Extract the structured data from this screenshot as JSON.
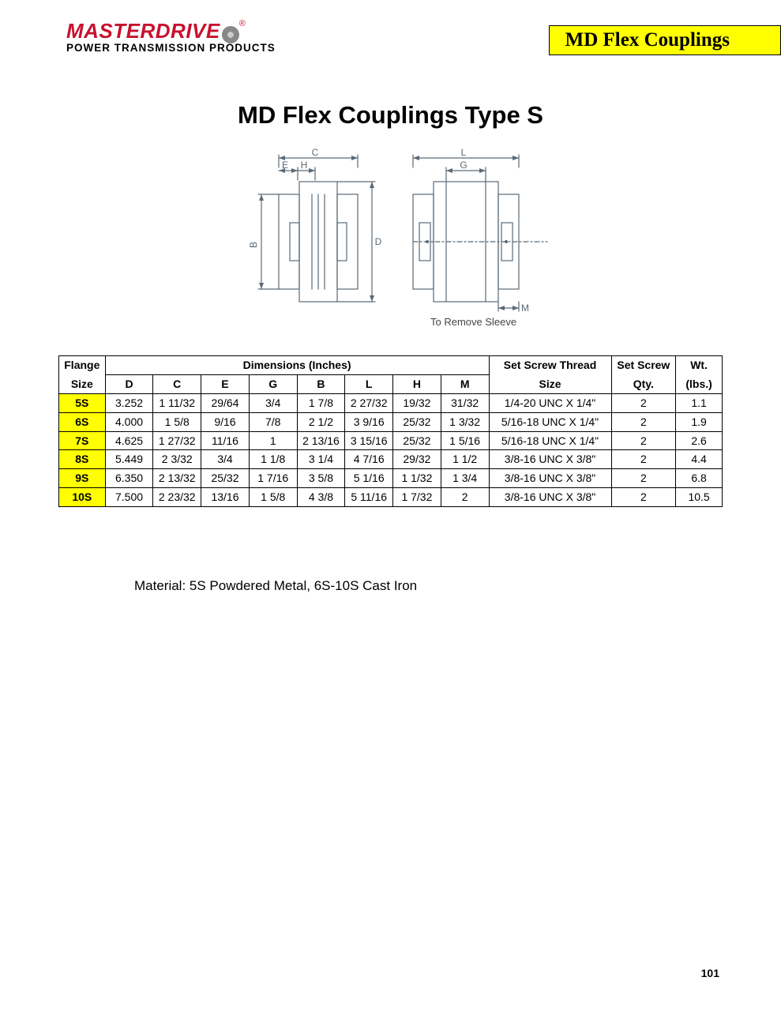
{
  "logo": {
    "brand": "MASTERDRIVE",
    "reg": "®",
    "tagline": "POWER TRANSMISSION PRODUCTS"
  },
  "banner": "MD Flex Couplings",
  "title": "MD Flex Couplings Type S",
  "diagram": {
    "labels": {
      "C": "C",
      "E": "E",
      "H": "H",
      "B": "B",
      "D": "D",
      "L": "L",
      "G": "G",
      "M": "M"
    },
    "note": "To Remove Sleeve",
    "stroke": "#5a6a78",
    "stroke_width": 1.2
  },
  "table": {
    "headers": {
      "flange": {
        "l1": "Flange",
        "l2": "Size"
      },
      "dimensions_group": "Dimensions (Inches)",
      "dims": [
        "D",
        "C",
        "E",
        "G",
        "B",
        "L",
        "H",
        "M"
      ],
      "thread": {
        "l1": "Set Screw Thread",
        "l2": "Size"
      },
      "qty": {
        "l1": "Set Screw",
        "l2": "Qty."
      },
      "wt": {
        "l1": "Wt.",
        "l2": "(lbs.)"
      }
    },
    "rows": [
      {
        "flange": "5S",
        "D": "3.252",
        "C": "1 11/32",
        "E": "29/64",
        "G": "3/4",
        "B": "1 7/8",
        "L": "2 27/32",
        "H": "19/32",
        "M": "31/32",
        "thread": "1/4-20 UNC X 1/4\"",
        "qty": "2",
        "wt": "1.1"
      },
      {
        "flange": "6S",
        "D": "4.000",
        "C": "1 5/8",
        "E": "9/16",
        "G": "7/8",
        "B": "2 1/2",
        "L": "3 9/16",
        "H": "25/32",
        "M": "1 3/32",
        "thread": "5/16-18 UNC X 1/4\"",
        "qty": "2",
        "wt": "1.9"
      },
      {
        "flange": "7S",
        "D": "4.625",
        "C": "1 27/32",
        "E": "11/16",
        "G": "1",
        "B": "2 13/16",
        "L": "3 15/16",
        "H": "25/32",
        "M": "1 5/16",
        "thread": "5/16-18 UNC X 1/4\"",
        "qty": "2",
        "wt": "2.6"
      },
      {
        "flange": "8S",
        "D": "5.449",
        "C": "2 3/32",
        "E": "3/4",
        "G": "1 1/8",
        "B": "3 1/4",
        "L": "4 7/16",
        "H": "29/32",
        "M": "1 1/2",
        "thread": "3/8-16 UNC X 3/8\"",
        "qty": "2",
        "wt": "4.4"
      },
      {
        "flange": "9S",
        "D": "6.350",
        "C": "2 13/32",
        "E": "25/32",
        "G": "1 7/16",
        "B": "3 5/8",
        "L": "5 1/16",
        "H": "1 1/32",
        "M": "1 3/4",
        "thread": "3/8-16 UNC X 3/8\"",
        "qty": "2",
        "wt": "6.8"
      },
      {
        "flange": "10S",
        "D": "7.500",
        "C": "2 23/32",
        "E": "13/16",
        "G": "1 5/8",
        "B": "4 3/8",
        "L": "5 11/16",
        "H": "1 7/32",
        "M": "2",
        "thread": "3/8-16 UNC X 3/8\"",
        "qty": "2",
        "wt": "10.5"
      }
    ],
    "flange_bg": "#ffff00"
  },
  "material_note": "Material: 5S Powdered Metal, 6S-10S Cast Iron",
  "page_number": "101"
}
